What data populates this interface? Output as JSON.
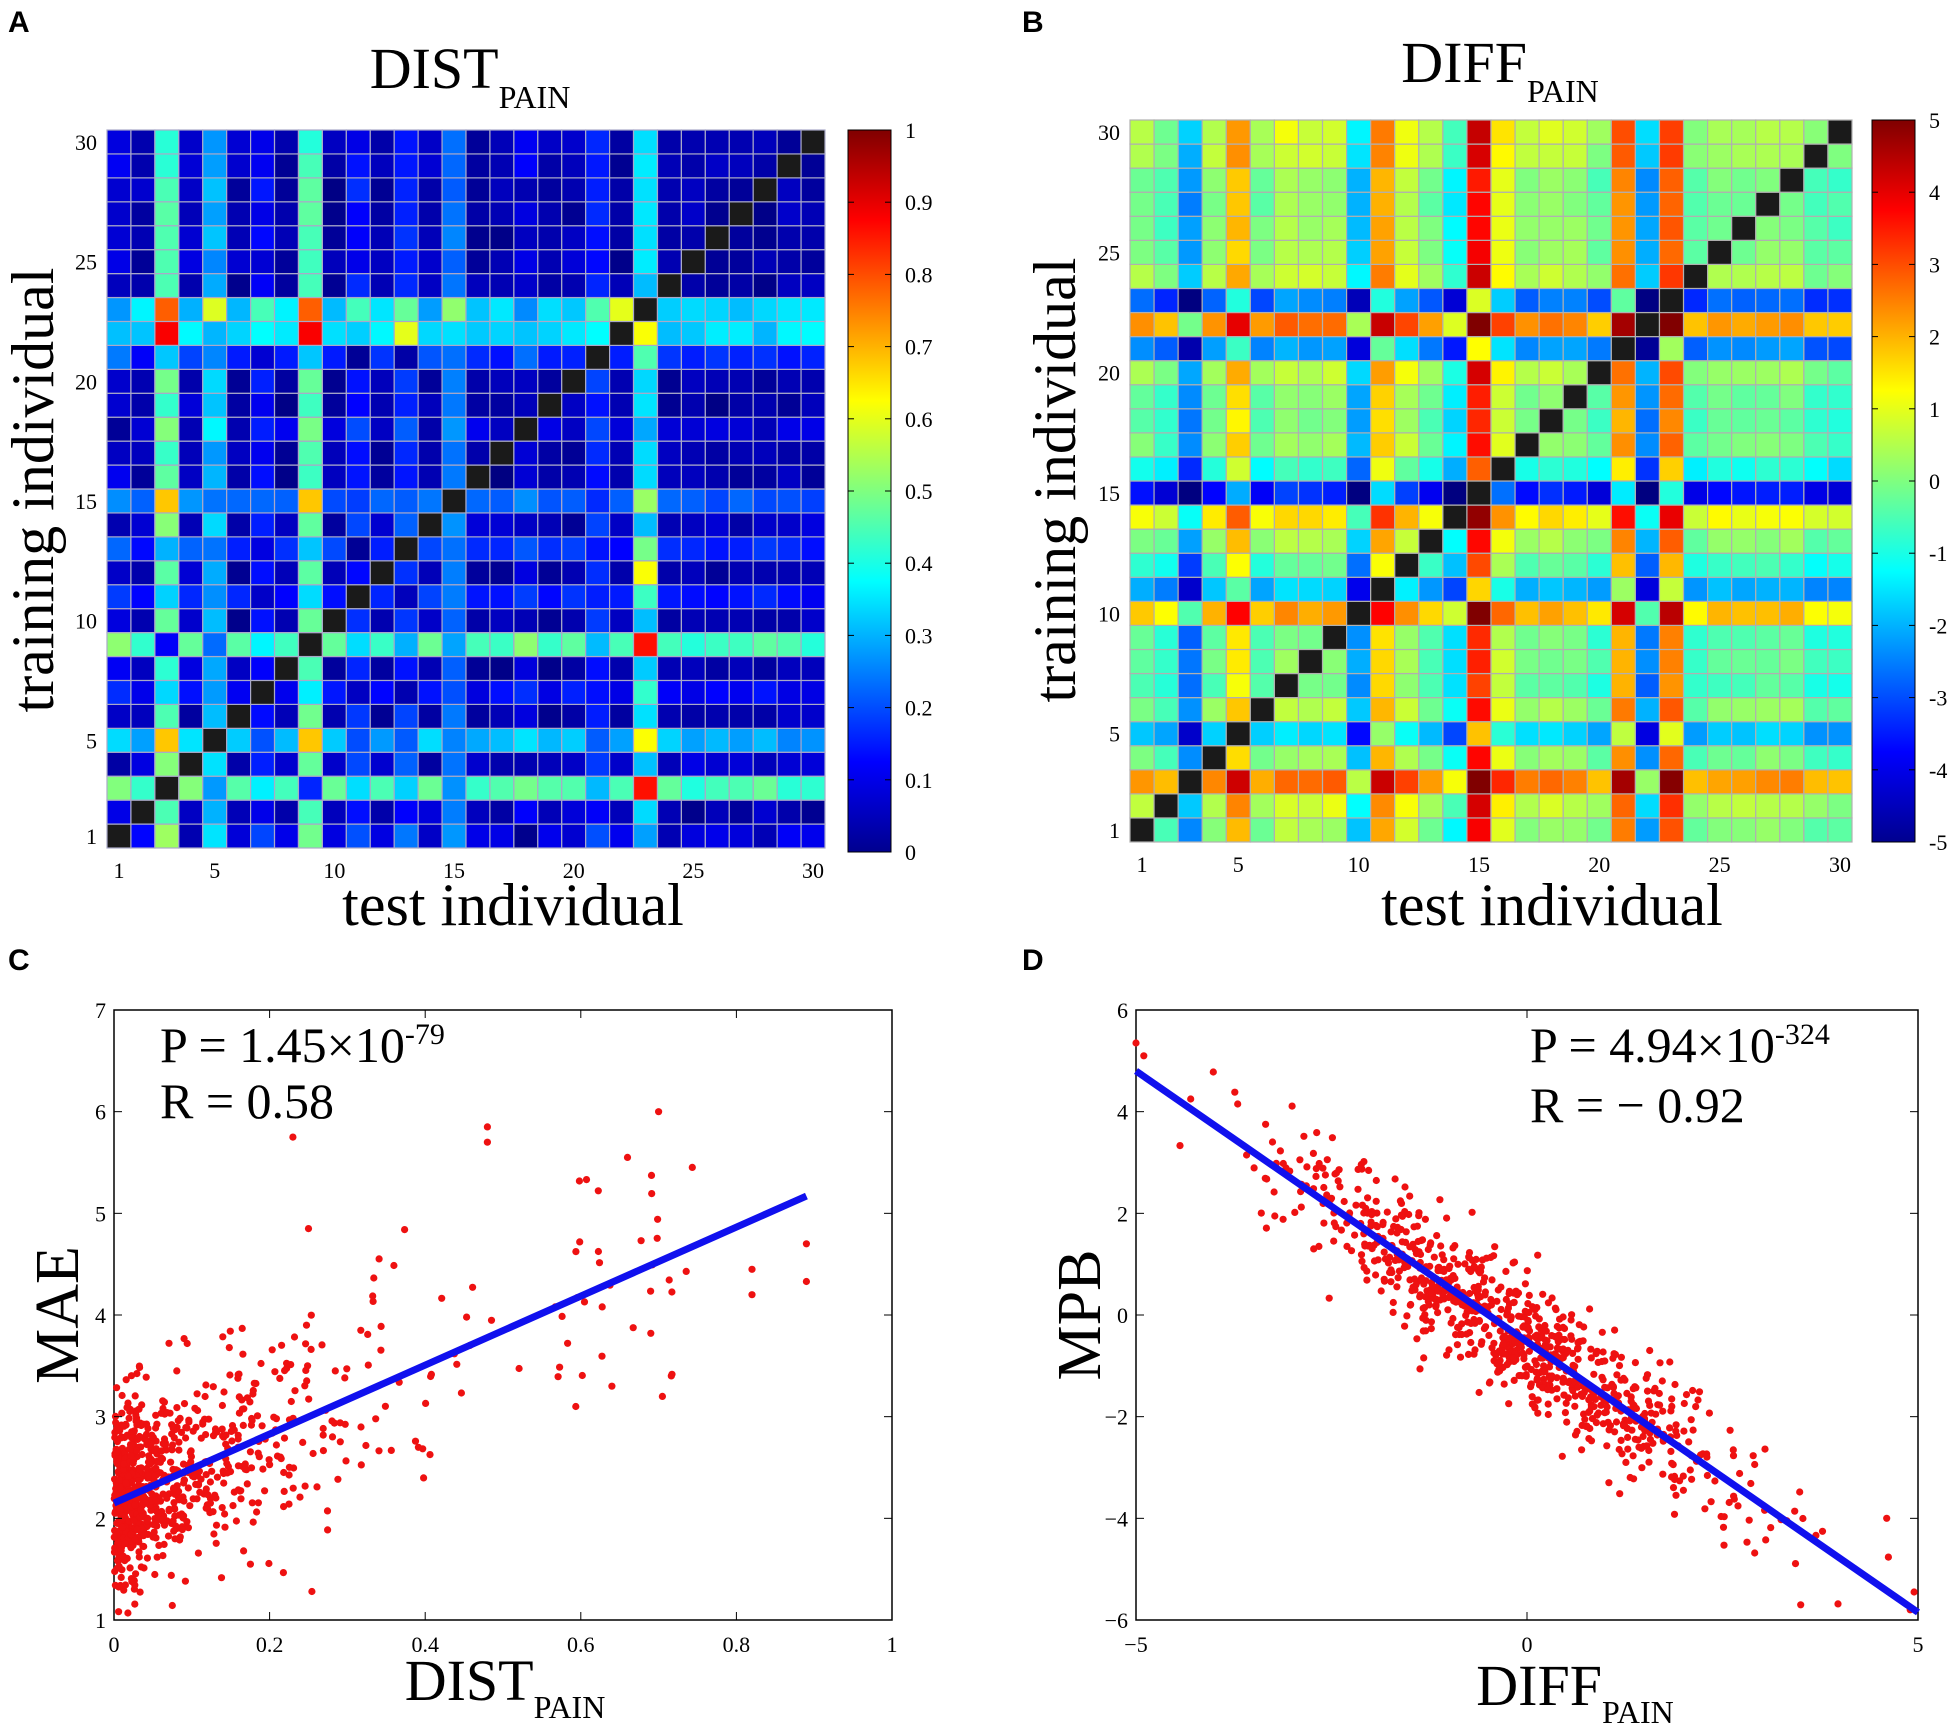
{
  "figure": {
    "panels": [
      "A",
      "B",
      "C",
      "D"
    ]
  },
  "chart_data": [
    {
      "id": "A",
      "type": "heatmap",
      "title": "DIST",
      "title_subscript": "PAIN",
      "xlabel": "test individual",
      "ylabel": "training individual",
      "n": 30,
      "xticks": [
        1,
        5,
        10,
        15,
        20,
        25,
        30
      ],
      "yticks": [
        1,
        5,
        10,
        15,
        20,
        25,
        30
      ],
      "colorbar": {
        "min": 0,
        "max": 1,
        "ticks": [
          0,
          0.1,
          0.2,
          0.3,
          0.4,
          0.5,
          0.6,
          0.7,
          0.8,
          0.9,
          1
        ],
        "labels": [
          "0",
          "0.1",
          "0.2",
          "0.3",
          "0.4",
          "0.5",
          "0.6",
          "0.7",
          "0.8",
          "0.9",
          "1"
        ]
      },
      "diagonal": "black",
      "description_of_values": "DIST(i,j) ~ |d_i - d_j| with per-individual offsets; highest at (3,22),(9,22),(23,3),(23,9)"
    },
    {
      "id": "B",
      "type": "heatmap",
      "title": "DIFF",
      "title_subscript": "PAIN",
      "xlabel": "test individual",
      "ylabel": "training individual",
      "n": 30,
      "xticks": [
        1,
        5,
        10,
        15,
        20,
        25,
        30
      ],
      "yticks": [
        1,
        5,
        10,
        15,
        20,
        25,
        30
      ],
      "colorbar": {
        "min": -5,
        "max": 5,
        "ticks": [
          -5,
          -4,
          -3,
          -2,
          -1,
          0,
          1,
          2,
          3,
          4,
          5
        ],
        "labels": [
          "-5",
          "-4",
          "-3",
          "-2",
          "-1",
          "0",
          "1",
          "2",
          "3",
          "4",
          "5"
        ]
      },
      "diagonal": "black",
      "column_offsets": [
        0.6,
        0.1,
        -1.7,
        0.7,
        2.4,
        0.5,
        1.1,
        0.9,
        1.0,
        -1.2,
        2.6,
        1.3,
        0.5,
        -0.6,
        4.3,
        1.6,
        0.7,
        0.9,
        0.8,
        0.3,
        3.0,
        -1.6,
        3.4,
        0.2,
        0.6,
        0.6,
        0.7,
        0.7,
        0.2,
        0.1
      ]
    },
    {
      "id": "C",
      "type": "scatter",
      "xlabel": "DIST",
      "xlabel_subscript": "PAIN",
      "ylabel": "MAE",
      "xlim": [
        0,
        1
      ],
      "ylim": [
        1,
        7
      ],
      "xticks": [
        0,
        0.2,
        0.4,
        0.6,
        0.8,
        1
      ],
      "xtick_labels": [
        "0",
        "0.2",
        "0.4",
        "0.6",
        "0.8",
        "1"
      ],
      "yticks": [
        1,
        2,
        3,
        4,
        5,
        6,
        7
      ],
      "ytick_labels": [
        "1",
        "2",
        "3",
        "4",
        "5",
        "6",
        "7"
      ],
      "stats": {
        "p_prefix": "P = 1.45×10",
        "p_exponent": "-79",
        "r_text": "R = 0.58"
      },
      "fit_line": {
        "x": [
          0,
          0.89
        ],
        "y": [
          2.15,
          5.17
        ]
      },
      "points_approx": 870,
      "sample_points": [
        {
          "x": 0.7,
          "y": 6.0
        },
        {
          "x": 0.48,
          "y": 5.85
        },
        {
          "x": 0.48,
          "y": 5.7
        },
        {
          "x": 0.66,
          "y": 5.55
        },
        {
          "x": 0.23,
          "y": 5.75
        },
        {
          "x": 0.25,
          "y": 4.85
        },
        {
          "x": 0.89,
          "y": 4.7
        },
        {
          "x": 0.89,
          "y": 4.33
        },
        {
          "x": 0.82,
          "y": 4.2
        },
        {
          "x": 0.82,
          "y": 4.45
        },
        {
          "x": 0.69,
          "y": 3.82
        },
        {
          "x": 0.64,
          "y": 3.3
        }
      ]
    },
    {
      "id": "D",
      "type": "scatter",
      "xlabel": "DIFF",
      "xlabel_subscript": "PAIN",
      "ylabel": "MPB",
      "xlim": [
        -5,
        5
      ],
      "ylim": [
        -6,
        6
      ],
      "xticks": [
        -5,
        0,
        5
      ],
      "xtick_labels": [
        "−5",
        "0",
        "5"
      ],
      "yticks": [
        -6,
        -4,
        -2,
        0,
        2,
        4,
        6
      ],
      "ytick_labels": [
        "−6",
        "−4",
        "−2",
        "0",
        "2",
        "4",
        "6"
      ],
      "stats": {
        "p_prefix": "P = 4.94×10",
        "p_exponent": "-324",
        "r_text": "R = − 0.92"
      },
      "fit_line": {
        "x": [
          -5,
          5
        ],
        "y": [
          4.8,
          -5.85
        ]
      },
      "points_approx": 870,
      "sample_points": [
        {
          "x": -5.0,
          "y": 5.35
        },
        {
          "x": -4.9,
          "y": 5.1
        },
        {
          "x": -4.3,
          "y": 4.25
        },
        {
          "x": -3.7,
          "y": 4.15
        },
        {
          "x": 4.6,
          "y": -4.0
        },
        {
          "x": 4.9,
          "y": -5.8
        },
        {
          "x": 4.95,
          "y": -5.45
        },
        {
          "x": 3.5,
          "y": -5.7
        }
      ]
    }
  ]
}
